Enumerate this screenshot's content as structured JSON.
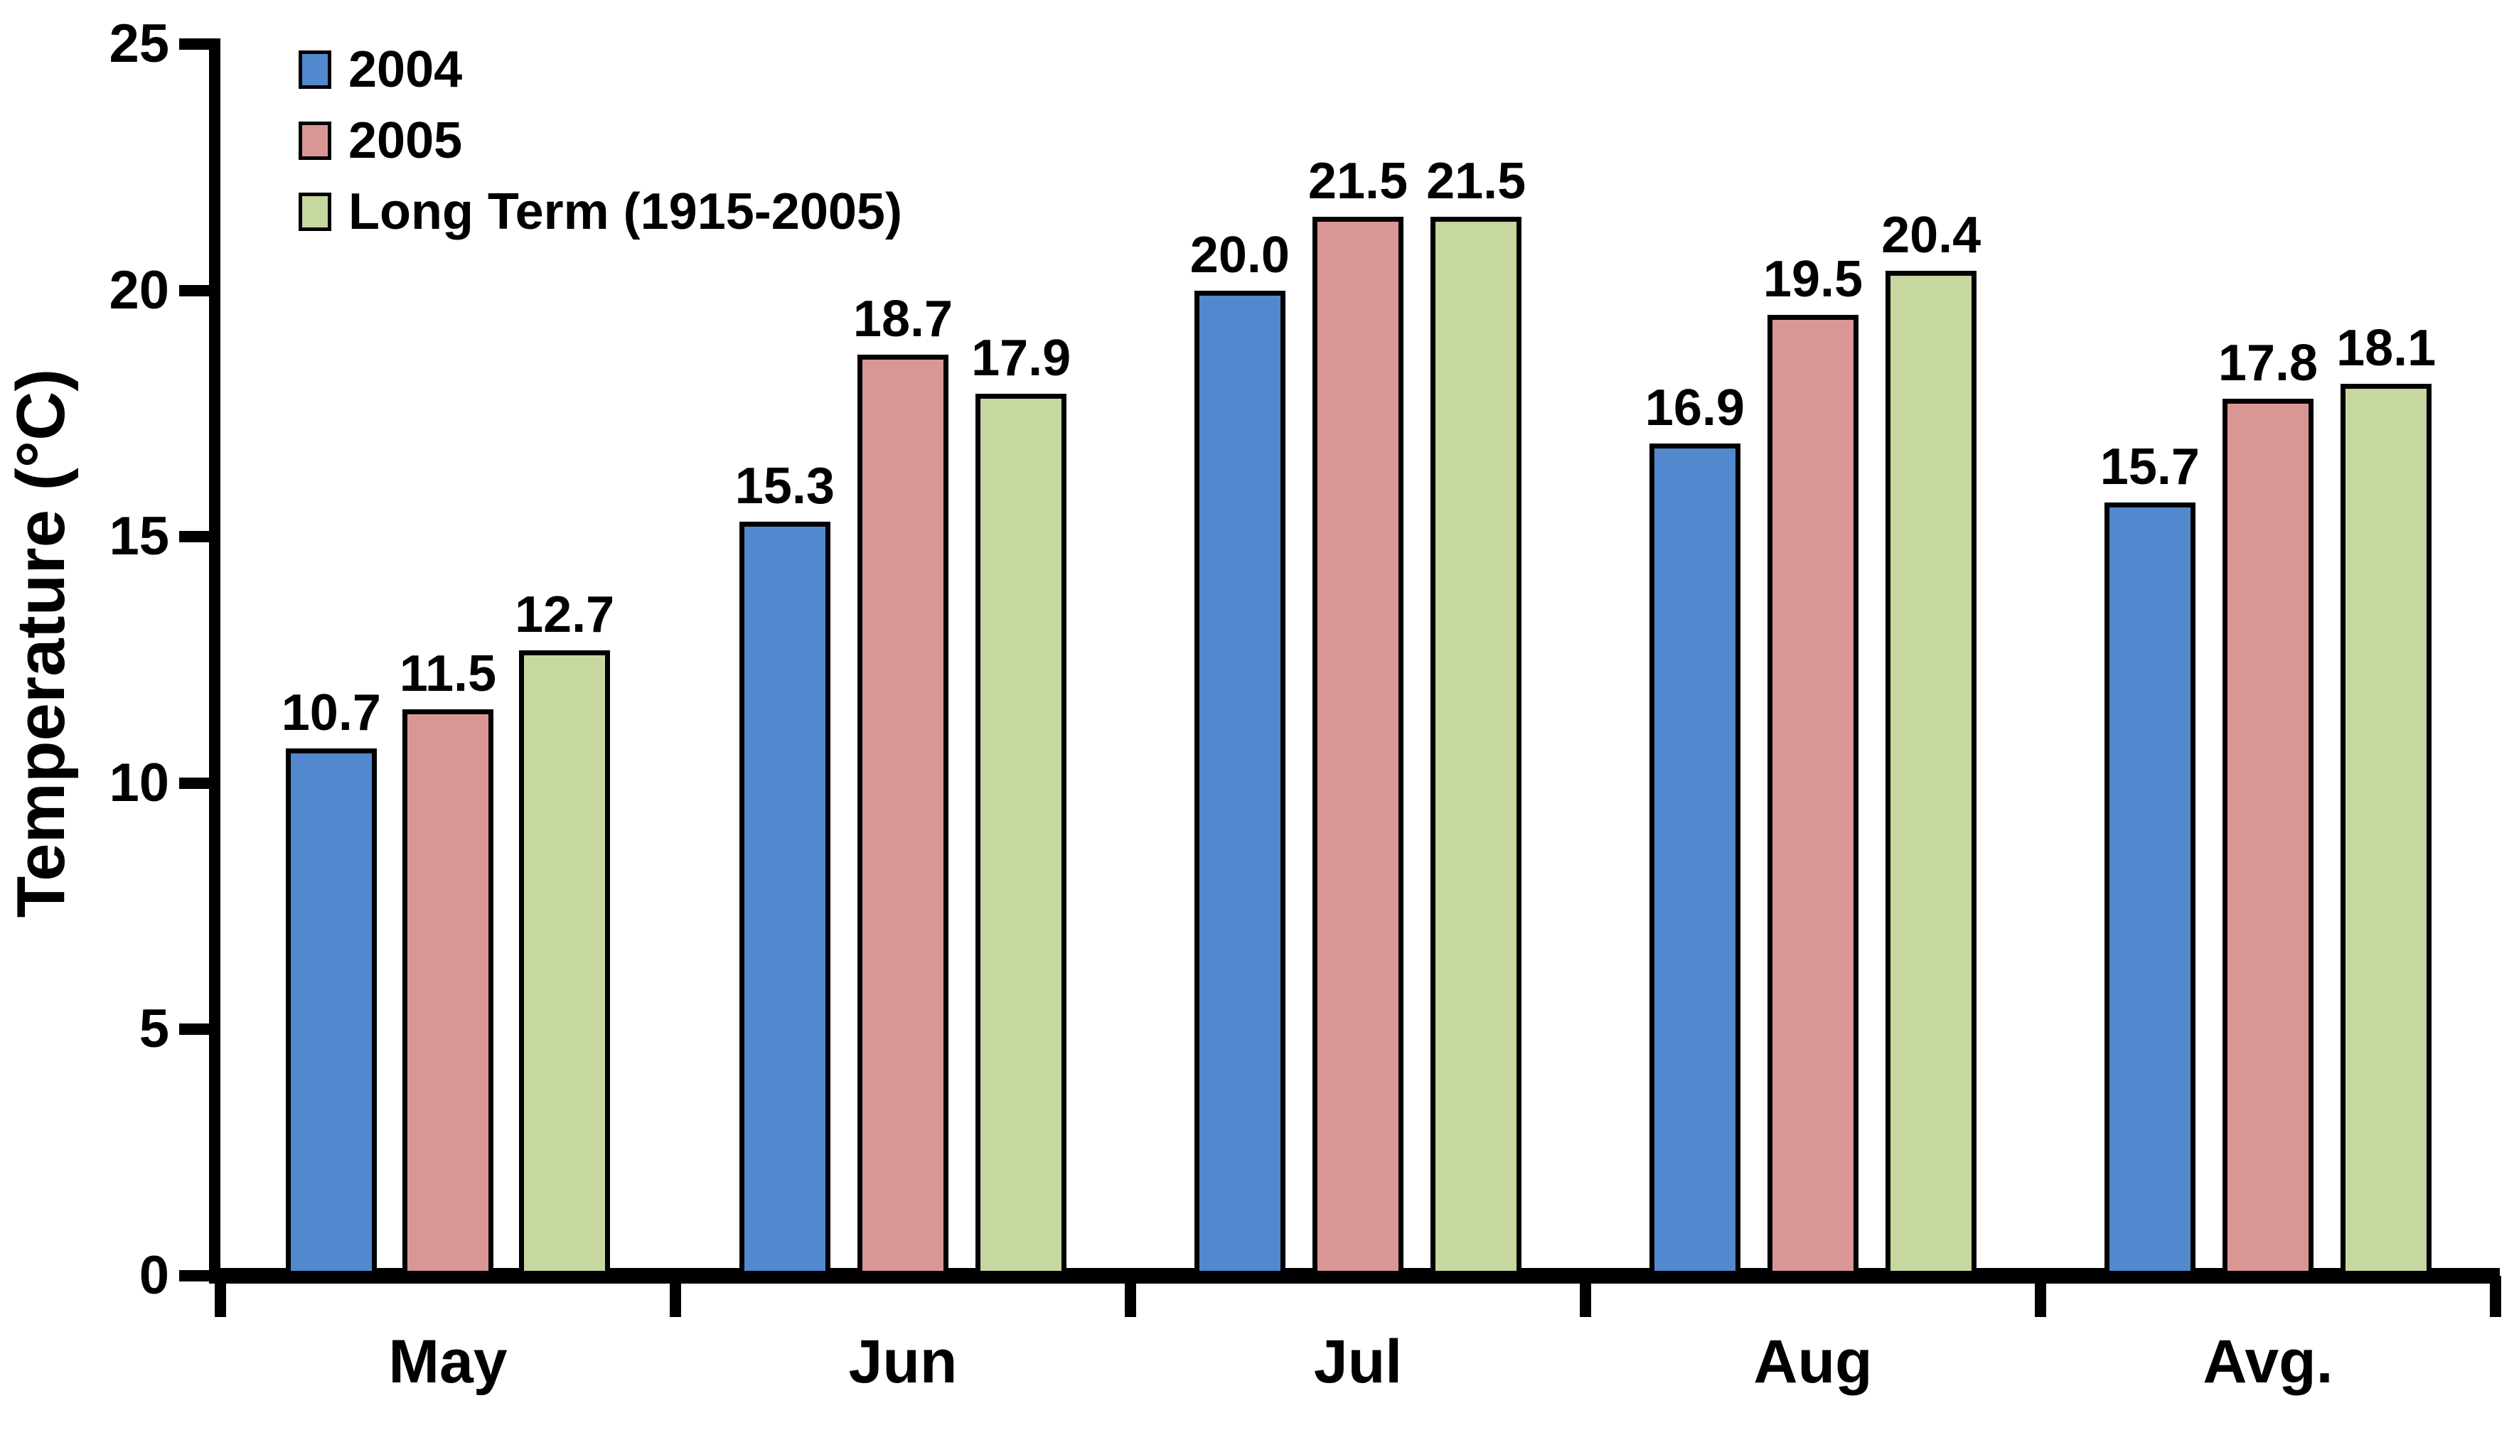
{
  "chart_data": {
    "type": "bar",
    "title": "",
    "xlabel": "",
    "ylabel": "Temperature (°C)",
    "ylim": [
      0,
      25
    ],
    "grid": false,
    "legend_position": "upper-left-inside",
    "background_color": "#FFFFFF",
    "axis_color": "#000000",
    "bar_border_color": "#000000",
    "categories": [
      "May",
      "Jun",
      "Jul",
      "Aug",
      "Avg."
    ],
    "y_ticks": [
      {
        "value": 0,
        "label": "0"
      },
      {
        "value": 5,
        "label": "5"
      },
      {
        "value": 10,
        "label": "10"
      },
      {
        "value": 15,
        "label": "15"
      },
      {
        "value": 20,
        "label": "20"
      },
      {
        "value": 25,
        "label": "25"
      }
    ],
    "series": [
      {
        "name": "2004",
        "color": "#5289CE",
        "values": [
          10.7,
          15.3,
          20.0,
          16.9,
          15.7
        ],
        "labels": [
          "10.7",
          "15.3",
          "20.0",
          "16.9",
          "15.7"
        ]
      },
      {
        "name": "2005",
        "color": "#D99695",
        "values": [
          11.5,
          18.7,
          21.5,
          19.5,
          17.8
        ],
        "labels": [
          "11.5",
          "18.7",
          "21.5",
          "19.5",
          "17.8"
        ]
      },
      {
        "name": "Long Term (1915-2005)",
        "color": "#C6D79F",
        "values": [
          12.7,
          17.9,
          21.5,
          20.4,
          18.1
        ],
        "labels": [
          "12.7",
          "17.9",
          "21.5",
          "20.4",
          "18.1"
        ]
      }
    ]
  }
}
